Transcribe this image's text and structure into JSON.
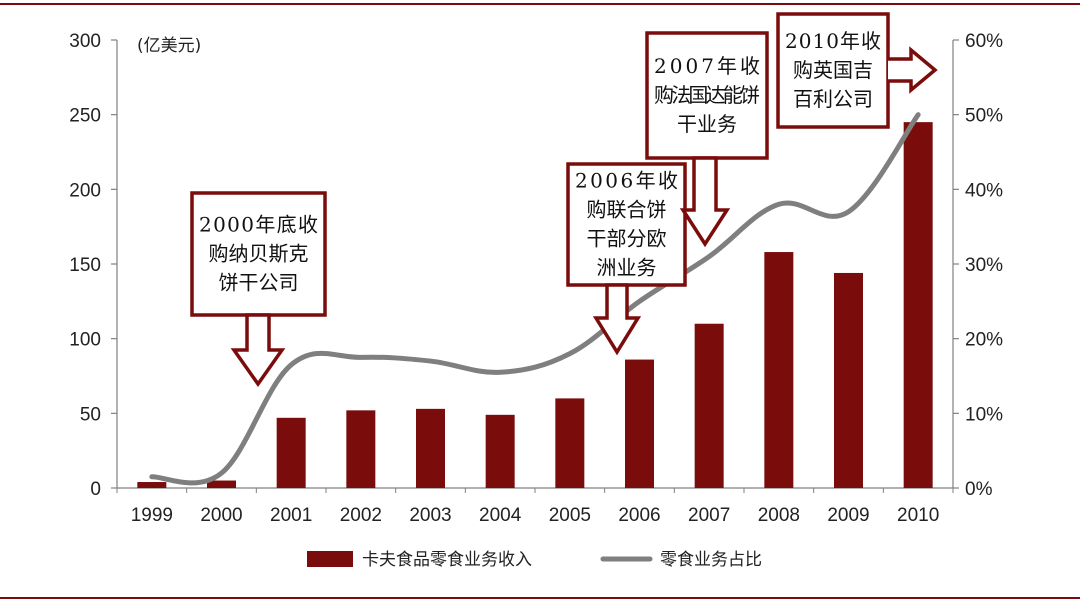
{
  "chart_data": {
    "type": "bar",
    "categories": [
      "1999",
      "2000",
      "2001",
      "2002",
      "2003",
      "2004",
      "2005",
      "2006",
      "2007",
      "2008",
      "2009",
      "2010"
    ],
    "series": [
      {
        "name": "卡夫食品零食业务收入",
        "type": "bar",
        "axis": "left",
        "color": "#7a0c0c",
        "values": [
          4,
          5,
          47,
          52,
          53,
          49,
          60,
          86,
          110,
          158,
          144,
          245
        ]
      },
      {
        "name": "零食业务占比",
        "type": "line",
        "axis": "right",
        "color": "#7f7f7f",
        "values": [
          1.5,
          2,
          16.5,
          17.5,
          17,
          15.5,
          18,
          25,
          31,
          38,
          37,
          50
        ]
      }
    ],
    "ylabel_left": "(亿美元)",
    "ylim_left": [
      0,
      300
    ],
    "yticks_left": [
      "0",
      "50",
      "100",
      "150",
      "200",
      "250",
      "300"
    ],
    "ylim_right": [
      0,
      60
    ],
    "yticks_right": [
      "0%",
      "10%",
      "20%",
      "30%",
      "40%",
      "50%",
      "60%"
    ],
    "grid": false,
    "legend_position": "bottom",
    "annotations": [
      {
        "year": "2000",
        "lines": [
          "2000年底收",
          "购纳贝斯克",
          "饼干公司"
        ],
        "arrow": "down"
      },
      {
        "year": "2006",
        "lines": [
          "2006年收",
          "购联合饼",
          "干部分欧",
          "洲业务"
        ],
        "arrow": "down"
      },
      {
        "year": "2007",
        "lines": [
          "2007年收",
          "购法国达能饼",
          "干业务"
        ],
        "arrow": "down"
      },
      {
        "year": "2010",
        "lines": [
          "2010年收",
          "购英国吉",
          "百利公司"
        ],
        "arrow": "right"
      }
    ]
  },
  "colors": {
    "frame": "#7a0c0c",
    "bar": "#7a0c0c",
    "line": "#7f7f7f",
    "callout_border": "#7a0c0c"
  }
}
